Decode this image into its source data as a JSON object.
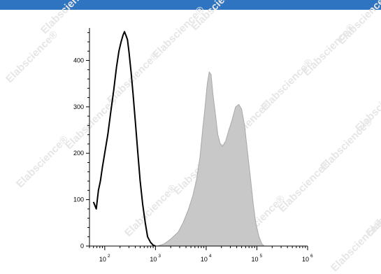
{
  "header_bar_color": "#2f74c0",
  "watermark": {
    "text": "Elabscience®"
  },
  "chart_data": {
    "type": "histogram",
    "title": "",
    "xlabel": "",
    "ylabel": "",
    "x_scale": "log",
    "xlim": [
      50,
      1000000
    ],
    "ylim": [
      0,
      470
    ],
    "x_ticks": [
      {
        "value": 100,
        "base": "10",
        "exp": "2"
      },
      {
        "value": 1000,
        "base": "10",
        "exp": "3"
      },
      {
        "value": 10000,
        "base": "10",
        "exp": "4"
      },
      {
        "value": 100000,
        "base": "10",
        "exp": "5"
      },
      {
        "value": 1000000,
        "base": "10",
        "exp": "6"
      }
    ],
    "y_ticks": [
      {
        "value": 0,
        "label": "0"
      },
      {
        "value": 100,
        "label": "100"
      },
      {
        "value": 200,
        "label": "200"
      },
      {
        "value": 300,
        "label": "300"
      },
      {
        "value": 400,
        "label": "400"
      }
    ],
    "series": [
      {
        "style": "outline",
        "color": "#000000",
        "points": [
          [
            60,
            95
          ],
          [
            68,
            80
          ],
          [
            75,
            120
          ],
          [
            82,
            140
          ],
          [
            90,
            170
          ],
          [
            100,
            200
          ],
          [
            115,
            240
          ],
          [
            130,
            285
          ],
          [
            150,
            335
          ],
          [
            170,
            385
          ],
          [
            190,
            420
          ],
          [
            210,
            440
          ],
          [
            230,
            455
          ],
          [
            245,
            462
          ],
          [
            260,
            455
          ],
          [
            280,
            445
          ],
          [
            300,
            420
          ],
          [
            330,
            375
          ],
          [
            360,
            330
          ],
          [
            400,
            270
          ],
          [
            450,
            200
          ],
          [
            500,
            140
          ],
          [
            560,
            90
          ],
          [
            630,
            50
          ],
          [
            700,
            20
          ],
          [
            800,
            8
          ],
          [
            900,
            2
          ],
          [
            1000,
            0
          ]
        ]
      },
      {
        "style": "filled",
        "color": "#c8c8c8",
        "outline_color": "#a8a8a8",
        "points": [
          [
            1100,
            0
          ],
          [
            1500,
            5
          ],
          [
            2000,
            15
          ],
          [
            2800,
            30
          ],
          [
            3500,
            50
          ],
          [
            4500,
            80
          ],
          [
            5500,
            110
          ],
          [
            6500,
            145
          ],
          [
            7500,
            190
          ],
          [
            8500,
            250
          ],
          [
            9500,
            300
          ],
          [
            10500,
            350
          ],
          [
            11500,
            375
          ],
          [
            12500,
            370
          ],
          [
            13500,
            330
          ],
          [
            15000,
            290
          ],
          [
            17000,
            240
          ],
          [
            19000,
            220
          ],
          [
            21000,
            215
          ],
          [
            24000,
            225
          ],
          [
            28000,
            250
          ],
          [
            32000,
            270
          ],
          [
            38000,
            300
          ],
          [
            44000,
            305
          ],
          [
            50000,
            295
          ],
          [
            57000,
            260
          ],
          [
            65000,
            205
          ],
          [
            75000,
            145
          ],
          [
            85000,
            90
          ],
          [
            95000,
            50
          ],
          [
            110000,
            20
          ],
          [
            125000,
            5
          ],
          [
            140000,
            0
          ]
        ]
      }
    ]
  }
}
